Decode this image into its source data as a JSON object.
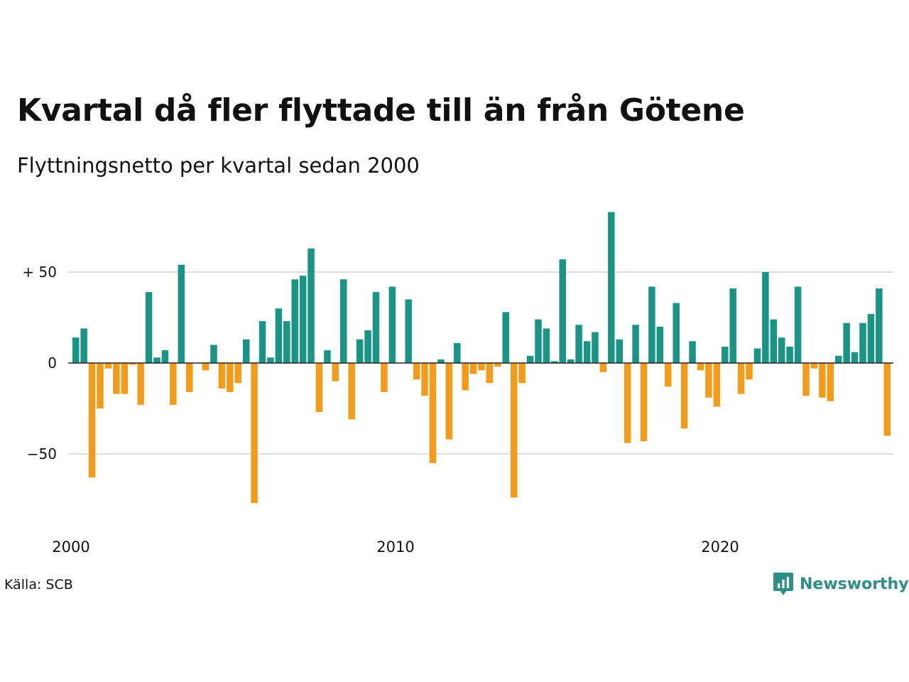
{
  "title": "Kvartal då fler flyttade till än från Götene",
  "subtitle": "Flyttningsnetto per kvartal sedan 2000",
  "source": "Källa: SCB",
  "brand": {
    "name": "Newsworthy",
    "icon": "newsworthy-logo-icon"
  },
  "colors": {
    "positive": "#1a9484",
    "negative": "#f39c1c",
    "grid": "#dddddd",
    "zero_line": "#222222"
  },
  "chart_data": {
    "type": "bar",
    "x_start_year": 2000,
    "x_tick_labels": [
      "2000",
      "2010",
      "2020"
    ],
    "y_ticks": [
      50,
      0,
      -50
    ],
    "y_tick_labels": [
      "+ 50",
      "0",
      "−50"
    ],
    "ylim": [
      -80,
      85
    ],
    "values": [
      14,
      19,
      -63,
      -25,
      -3,
      -17,
      -17,
      -1,
      -23,
      39,
      3,
      7,
      -23,
      54,
      -16,
      0,
      -4,
      10,
      -14,
      -16,
      -11,
      13,
      -77,
      23,
      3,
      30,
      23,
      46,
      48,
      63,
      -27,
      7,
      -10,
      46,
      -31,
      13,
      18,
      39,
      -16,
      42,
      0,
      35,
      -9,
      -18,
      -55,
      2,
      -42,
      11,
      -15,
      -6,
      -4,
      -11,
      -2,
      28,
      -74,
      -11,
      4,
      24,
      19,
      1,
      57,
      2,
      21,
      12,
      17,
      -5,
      83,
      13,
      -44,
      21,
      -43,
      42,
      20,
      -13,
      33,
      -36,
      12,
      -4,
      -19,
      -24,
      9,
      41,
      -17,
      -9,
      8,
      50,
      24,
      14,
      9,
      42,
      -18,
      -3,
      -19,
      -21,
      4,
      22,
      6,
      22,
      27,
      41,
      -40
    ]
  }
}
